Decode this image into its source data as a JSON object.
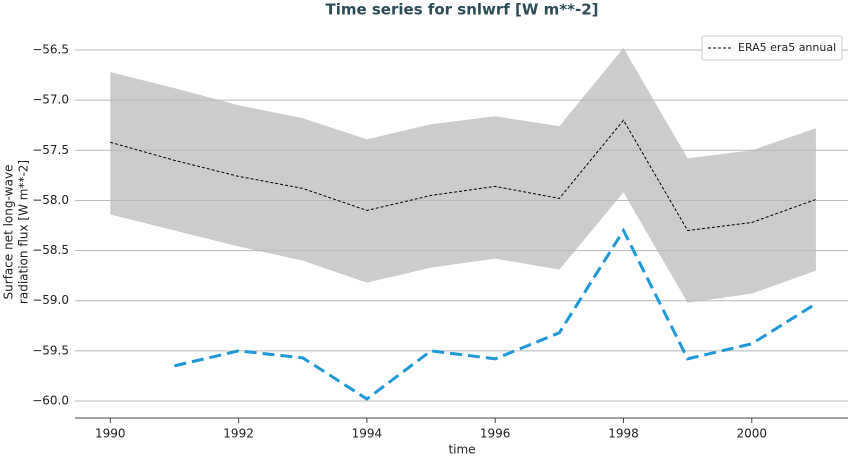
{
  "chart_data": {
    "type": "line",
    "title": "Time series for snlwrf [W m**-2]",
    "xlabel": "time",
    "ylabel": [
      "Surface net long-wave",
      "radiation flux [W m**-2]"
    ],
    "x": [
      1990,
      1991,
      1992,
      1993,
      1994,
      1995,
      1996,
      1997,
      1998,
      1999,
      2000,
      2001
    ],
    "band": {
      "color": "#cccccc",
      "upper": [
        -56.72,
        -56.88,
        -57.05,
        -57.18,
        -57.39,
        -57.24,
        -57.16,
        -57.26,
        -56.48,
        -57.58,
        -57.5,
        -57.28
      ],
      "lower": [
        -58.14,
        -58.3,
        -58.46,
        -58.6,
        -58.82,
        -58.67,
        -58.58,
        -58.69,
        -57.92,
        -59.02,
        -58.93,
        -58.7
      ]
    },
    "series": [
      {
        "name": "ERA5 era5 annual",
        "color": "#000000",
        "dash": "3,2",
        "width": 1,
        "values": [
          -57.42,
          -57.6,
          -57.76,
          -57.88,
          -58.1,
          -57.95,
          -57.86,
          -57.98,
          -57.2,
          -58.3,
          -58.22,
          -57.99
        ]
      },
      {
        "color": "#1f98d9",
        "dash": "12,6",
        "width": 3,
        "legend": false,
        "values": [
          null,
          -59.65,
          -59.5,
          -59.57,
          -59.98,
          -59.5,
          -59.58,
          -59.32,
          -58.3,
          -59.58,
          -59.43,
          -59.03
        ]
      }
    ],
    "xlim": [
      1989.45,
      2001.5
    ],
    "xticks": [
      1990,
      1992,
      1994,
      1996,
      1998,
      2000
    ],
    "ylim": [
      -60.17,
      -56.3
    ],
    "yticks": [
      {
        "value": -56.5,
        "label": "−56.5"
      },
      {
        "value": -57.0,
        "label": "−57.0"
      },
      {
        "value": -57.5,
        "label": "−57.5"
      },
      {
        "value": -58.0,
        "label": "−58.0"
      },
      {
        "value": -58.5,
        "label": "−58.5"
      },
      {
        "value": -59.0,
        "label": "−59.0"
      },
      {
        "value": -59.5,
        "label": "−59.5"
      },
      {
        "value": -60.0,
        "label": "−60.0"
      }
    ],
    "grid": true,
    "legend": "upper right"
  }
}
